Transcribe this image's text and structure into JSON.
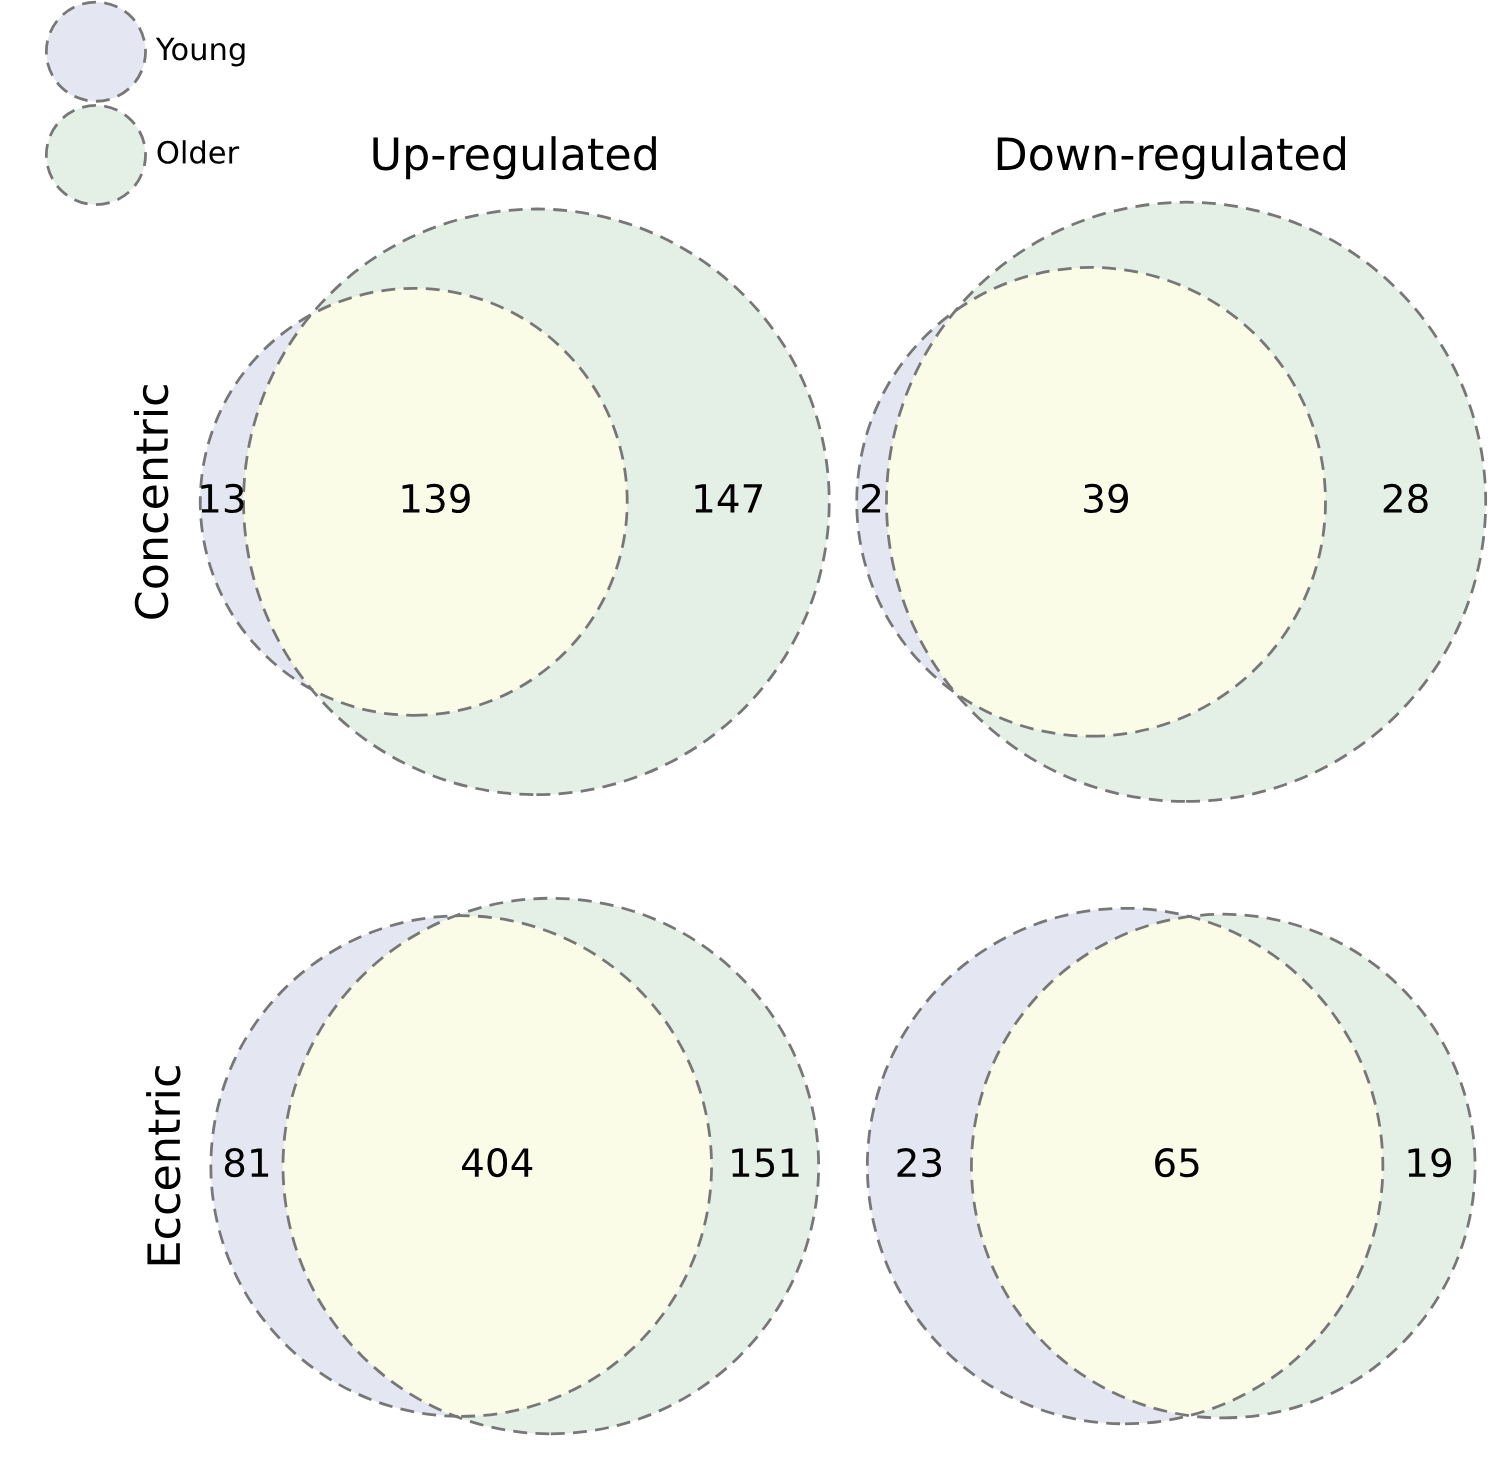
{
  "chart_data": [
    {
      "type": "other",
      "annotations": [
        "Young",
        "Older"
      ]
    },
    {
      "type": "other",
      "title": "Up-regulated",
      "ylabel": "Concentric",
      "categories": [
        null,
        null,
        null
      ],
      "values": [
        13,
        139,
        147
      ],
      "colors": [
        "#e4e6f2",
        "#fbfce8",
        "#e4efe5"
      ],
      "data_labels": true
    },
    {
      "type": "other",
      "title": "Down-regulated",
      "categories": [
        null,
        null,
        null
      ],
      "values": [
        2,
        39,
        28
      ],
      "colors": [
        "#e4e6f2",
        "#fbfce8",
        "#e4efe5"
      ],
      "data_labels": true
    },
    {
      "type": "other",
      "ylabel": "Eccentric",
      "categories": [
        null,
        null,
        null
      ],
      "values": [
        81,
        404,
        151
      ],
      "colors": [
        "#e4e6f2",
        "#fbfce8",
        "#e4efe5"
      ],
      "data_labels": true
    },
    {
      "type": "other",
      "categories": [
        null,
        null,
        null
      ],
      "values": [
        23,
        65,
        19
      ],
      "colors": [
        "#e4e6f2",
        "#fbfce8",
        "#e4efe5"
      ],
      "data_labels": true
    }
  ]
}
